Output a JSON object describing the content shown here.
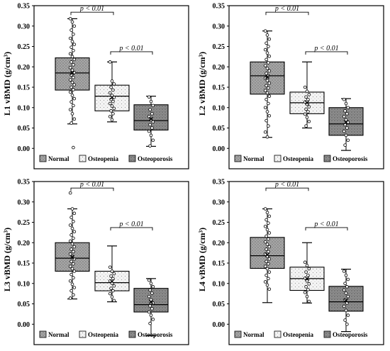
{
  "chart_data": [
    {
      "type": "box",
      "ylabel": "L1 vBMD (g/cm³)",
      "ylim": [
        -0.05,
        0.35
      ],
      "yticks": [
        "0.00",
        "0.05",
        "0.10",
        "0.15",
        "0.20",
        "0.25",
        "0.30",
        "0.35"
      ],
      "legend": [
        "Normal",
        "Osteopenia",
        "Osteoporosis"
      ],
      "annotations": [
        "p < 0.01",
        "p < 0.01"
      ],
      "groups": [
        {
          "name": "Normal",
          "whisker_low": 0.06,
          "q1": 0.143,
          "median": 0.185,
          "q3": 0.222,
          "whisker_high": 0.318,
          "mean": 0.185,
          "points": [
            0.318,
            0.31,
            0.3,
            0.29,
            0.28,
            0.27,
            0.262,
            0.255,
            0.248,
            0.24,
            0.232,
            0.225,
            0.218,
            0.212,
            0.205,
            0.198,
            0.192,
            0.186,
            0.18,
            0.174,
            0.168,
            0.162,
            0.156,
            0.15,
            0.144,
            0.138,
            0.13,
            0.122,
            0.114,
            0.105,
            0.095,
            0.085,
            0.072,
            0.062,
            0.002
          ]
        },
        {
          "name": "Osteopenia",
          "whisker_low": 0.065,
          "q1": 0.092,
          "median": 0.128,
          "q3": 0.155,
          "whisker_high": 0.212,
          "mean": 0.125,
          "points": [
            0.212,
            0.165,
            0.158,
            0.15,
            0.143,
            0.136,
            0.13,
            0.125,
            0.12,
            0.115,
            0.11,
            0.104,
            0.098,
            0.092,
            0.085,
            0.078,
            0.07
          ]
        },
        {
          "name": "Osteoporosis",
          "whisker_low": 0.005,
          "q1": 0.045,
          "median": 0.068,
          "q3": 0.107,
          "whisker_high": 0.128,
          "mean": 0.072,
          "points": [
            0.126,
            0.115,
            0.105,
            0.095,
            0.085,
            0.078,
            0.07,
            0.065,
            0.058,
            0.05,
            0.042,
            0.032,
            0.02,
            0.006
          ]
        }
      ]
    },
    {
      "type": "box",
      "ylabel": "L2 vBMD (g/cm³)",
      "ylim": [
        -0.05,
        0.35
      ],
      "yticks": [
        "0.00",
        "0.05",
        "0.10",
        "0.15",
        "0.20",
        "0.25",
        "0.30",
        "0.35"
      ],
      "legend": [
        "Normal",
        "Osteopenia",
        "Osteoporosis"
      ],
      "annotations": [
        "p < 0.01",
        "p < 0.01"
      ],
      "groups": [
        {
          "name": "Normal",
          "whisker_low": 0.027,
          "q1": 0.133,
          "median": 0.178,
          "q3": 0.212,
          "whisker_high": 0.288,
          "mean": 0.175,
          "points": [
            0.288,
            0.278,
            0.268,
            0.258,
            0.25,
            0.242,
            0.234,
            0.226,
            0.218,
            0.21,
            0.203,
            0.196,
            0.19,
            0.184,
            0.178,
            0.172,
            0.166,
            0.16,
            0.154,
            0.148,
            0.142,
            0.136,
            0.128,
            0.12,
            0.11,
            0.1,
            0.09,
            0.08,
            0.068,
            0.055,
            0.04,
            0.028
          ]
        },
        {
          "name": "Osteopenia",
          "whisker_low": 0.05,
          "q1": 0.085,
          "median": 0.112,
          "q3": 0.138,
          "whisker_high": 0.212,
          "mean": 0.112,
          "points": [
            0.15,
            0.14,
            0.132,
            0.126,
            0.12,
            0.114,
            0.108,
            0.102,
            0.096,
            0.09,
            0.084,
            0.076,
            0.066,
            0.055
          ]
        },
        {
          "name": "Osteoporosis",
          "whisker_low": -0.005,
          "q1": 0.032,
          "median": 0.06,
          "q3": 0.1,
          "whisker_high": 0.122,
          "mean": 0.064,
          "points": [
            0.12,
            0.11,
            0.1,
            0.092,
            0.085,
            0.078,
            0.07,
            0.064,
            0.058,
            0.05,
            0.042,
            0.032,
            0.02,
            0.008
          ]
        }
      ]
    },
    {
      "type": "box",
      "ylabel": "L3 vBMD (g/cm³)",
      "ylim": [
        -0.05,
        0.35
      ],
      "yticks": [
        "0.00",
        "0.05",
        "0.10",
        "0.15",
        "0.20",
        "0.25",
        "0.30",
        "0.35"
      ],
      "legend": [
        "Normal",
        "Osteopenia",
        "Osteoporosis"
      ],
      "annotations": [
        "p < 0.01",
        "p < 0.01"
      ],
      "groups": [
        {
          "name": "Normal",
          "whisker_low": 0.062,
          "q1": 0.13,
          "median": 0.162,
          "q3": 0.2,
          "whisker_high": 0.283,
          "mean": 0.165,
          "points": [
            0.322,
            0.283,
            0.272,
            0.262,
            0.252,
            0.243,
            0.235,
            0.227,
            0.219,
            0.211,
            0.204,
            0.197,
            0.19,
            0.184,
            0.178,
            0.172,
            0.166,
            0.16,
            0.154,
            0.148,
            0.142,
            0.136,
            0.13,
            0.122,
            0.114,
            0.106,
            0.098,
            0.09,
            0.082,
            0.072,
            0.064
          ]
        },
        {
          "name": "Osteopenia",
          "whisker_low": 0.055,
          "q1": 0.082,
          "median": 0.102,
          "q3": 0.13,
          "whisker_high": 0.192,
          "mean": 0.105,
          "points": [
            0.14,
            0.13,
            0.124,
            0.118,
            0.112,
            0.106,
            0.1,
            0.094,
            0.088,
            0.082,
            0.075,
            0.067,
            0.058
          ]
        },
        {
          "name": "Osteoporosis",
          "whisker_low": -0.028,
          "q1": 0.03,
          "median": 0.048,
          "q3": 0.088,
          "whisker_high": 0.112,
          "mean": 0.055,
          "points": [
            0.108,
            0.1,
            0.092,
            0.084,
            0.076,
            0.068,
            0.06,
            0.052,
            0.045,
            0.038,
            0.03,
            0.022,
            0.012,
            0.002
          ]
        }
      ]
    },
    {
      "type": "box",
      "ylabel": "L4 vBMD (g/cm³)",
      "ylim": [
        -0.05,
        0.35
      ],
      "yticks": [
        "0.00",
        "0.05",
        "0.10",
        "0.15",
        "0.20",
        "0.25",
        "0.30",
        "0.35"
      ],
      "legend": [
        "Normal",
        "Osteopenia",
        "Osteoporosis"
      ],
      "annotations": [
        "p < 0.01",
        "p < 0.01"
      ],
      "groups": [
        {
          "name": "Normal",
          "whisker_low": 0.053,
          "q1": 0.137,
          "median": 0.168,
          "q3": 0.213,
          "whisker_high": 0.283,
          "mean": 0.17,
          "points": [
            0.283,
            0.274,
            0.265,
            0.256,
            0.248,
            0.24,
            0.232,
            0.224,
            0.216,
            0.209,
            0.202,
            0.196,
            0.19,
            0.184,
            0.178,
            0.172,
            0.166,
            0.16,
            0.154,
            0.148,
            0.142,
            0.136,
            0.128,
            0.12,
            0.112,
            0.104,
            0.096,
            0.086
          ]
        },
        {
          "name": "Osteopenia",
          "whisker_low": 0.052,
          "q1": 0.083,
          "median": 0.112,
          "q3": 0.14,
          "whisker_high": 0.2,
          "mean": 0.112,
          "points": [
            0.152,
            0.144,
            0.136,
            0.128,
            0.12,
            0.113,
            0.106,
            0.099,
            0.092,
            0.085,
            0.078,
            0.068,
            0.056
          ]
        },
        {
          "name": "Osteoporosis",
          "whisker_low": -0.018,
          "q1": 0.032,
          "median": 0.055,
          "q3": 0.093,
          "whisker_high": 0.135,
          "mean": 0.058,
          "points": [
            0.13,
            0.12,
            0.11,
            0.1,
            0.092,
            0.084,
            0.076,
            0.068,
            0.06,
            0.052,
            0.044,
            0.034,
            0.022,
            0.01,
            0.0
          ]
        }
      ]
    }
  ]
}
